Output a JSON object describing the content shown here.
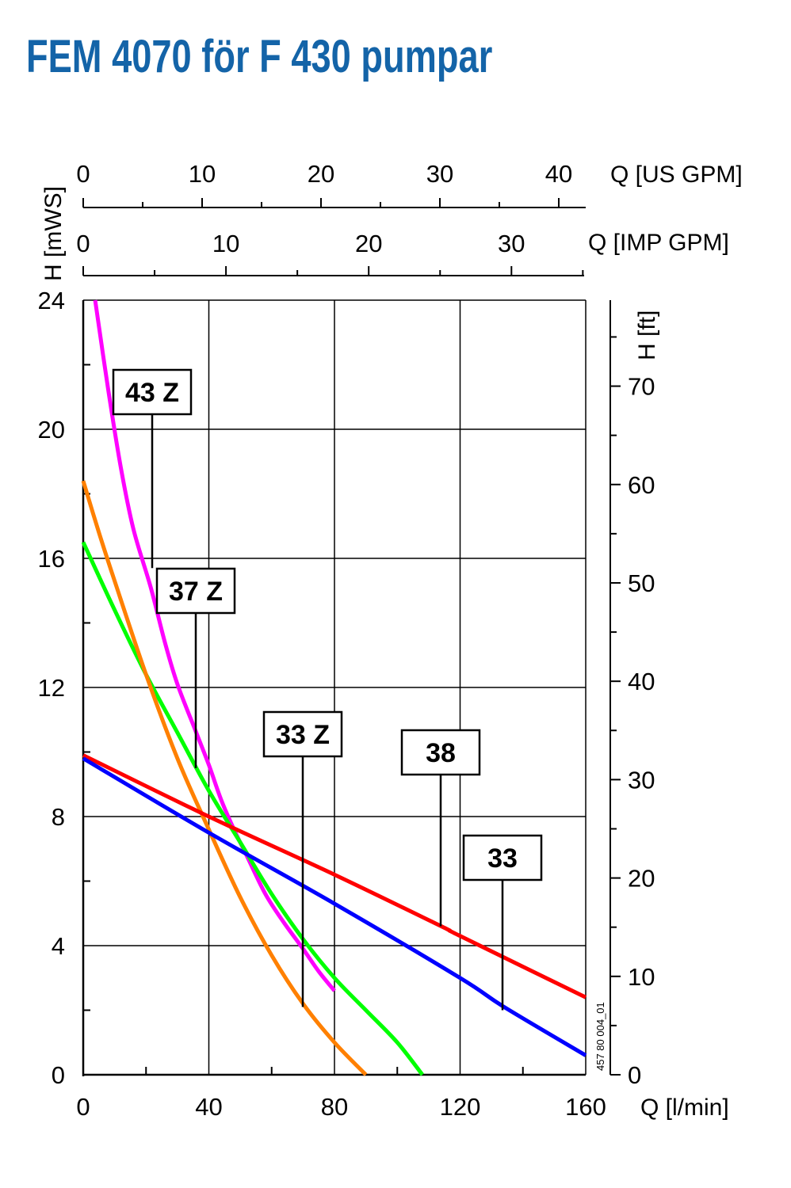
{
  "title": "FEM 4070 för F 430 pumpar",
  "chart_data": {
    "type": "line",
    "title": "FEM 4070 för F 430 pumpar",
    "xlabel": "Q [l/min]",
    "ylabel": "H [mWS]",
    "xlim": [
      0,
      160
    ],
    "ylim": [
      0,
      24
    ],
    "x_ticks": [
      0,
      40,
      80,
      120,
      160
    ],
    "y_ticks": [
      0,
      4,
      8,
      12,
      16,
      20,
      24
    ],
    "grid": true,
    "secondary_axes": {
      "us_gpm": {
        "label": "Q [US GPM]",
        "ticks": [
          0,
          10,
          20,
          30,
          40
        ]
      },
      "imp_gpm": {
        "label": "Q [IMP GPM]",
        "ticks": [
          0,
          10,
          20,
          30
        ]
      },
      "ft": {
        "label": "H [ft]",
        "ticks": [
          0,
          10,
          20,
          30,
          40,
          50,
          60,
          70
        ]
      }
    },
    "series": [
      {
        "name": "43 Z",
        "color": "#ff00ff",
        "points": [
          [
            3.8,
            24
          ],
          [
            8,
            21.2
          ],
          [
            12,
            18.8
          ],
          [
            16,
            16.9
          ],
          [
            21.5,
            15.1
          ],
          [
            26,
            13.4
          ],
          [
            30,
            12.1
          ],
          [
            36,
            10.6
          ],
          [
            40,
            9.6
          ],
          [
            44,
            8.5
          ],
          [
            48,
            7.6
          ],
          [
            52,
            6.8
          ],
          [
            58,
            5.6
          ],
          [
            64,
            4.7
          ],
          [
            70,
            3.9
          ],
          [
            75,
            3.2
          ],
          [
            80,
            2.6
          ]
        ]
      },
      {
        "name": "37 Z",
        "color": "#00ff00",
        "points": [
          [
            0,
            16.5
          ],
          [
            10,
            14.4
          ],
          [
            20,
            12.4
          ],
          [
            30,
            10.6
          ],
          [
            40,
            8.8
          ],
          [
            50,
            7.2
          ],
          [
            60,
            5.6
          ],
          [
            70,
            4.2
          ],
          [
            80,
            3.0
          ],
          [
            90,
            2.0
          ],
          [
            100,
            1.0
          ],
          [
            108,
            0
          ]
        ]
      },
      {
        "name": "33 Z",
        "color": "#ff8000",
        "points": [
          [
            0,
            18.4
          ],
          [
            5,
            16.8
          ],
          [
            10,
            15.3
          ],
          [
            20,
            12.4
          ],
          [
            30,
            9.8
          ],
          [
            40,
            7.6
          ],
          [
            50,
            5.5
          ],
          [
            60,
            3.7
          ],
          [
            70,
            2.2
          ],
          [
            80,
            1.0
          ],
          [
            90,
            0
          ]
        ]
      },
      {
        "name": "38",
        "color": "#ff0000",
        "points": [
          [
            0,
            9.9
          ],
          [
            40,
            8.0
          ],
          [
            80,
            6.2
          ],
          [
            114,
            4.6
          ],
          [
            120,
            4.3
          ],
          [
            160,
            2.4
          ]
        ]
      },
      {
        "name": "33",
        "color": "#0000ff",
        "points": [
          [
            0,
            9.8
          ],
          [
            40,
            7.5
          ],
          [
            80,
            5.3
          ],
          [
            120,
            3.0
          ],
          [
            134,
            2.1
          ],
          [
            160,
            0.6
          ]
        ]
      }
    ],
    "annotations": [
      {
        "text": "43 Z",
        "q": 22,
        "h": 15.7
      },
      {
        "text": "37 Z",
        "q": 36,
        "h": 9.5
      },
      {
        "text": "33 Z",
        "q": 70,
        "h": 2.1
      },
      {
        "text": "38",
        "q": 114,
        "h": 4.6
      },
      {
        "text": "33",
        "q": 134,
        "h": 2.0
      }
    ],
    "drawing_id": "457 80 004_01"
  }
}
